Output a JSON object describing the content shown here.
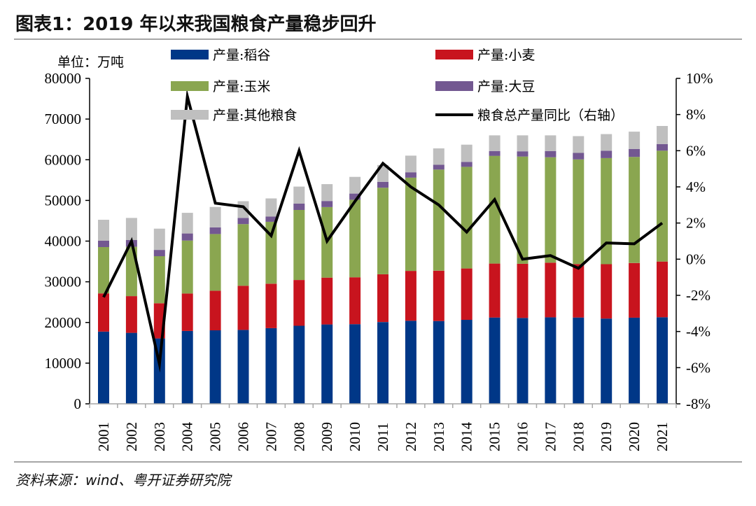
{
  "title": "图表1：2019 年以来我国粮食产量稳步回升",
  "source": "资料来源：wind、粤开证券研究院",
  "chart_data": {
    "type": "bar",
    "stacked": true,
    "title": "图表1：2019 年以来我国粮食产量稳步回升",
    "unit_label": "单位：万吨",
    "xlabel": "",
    "ylabel": "",
    "categories": [
      "2001",
      "2002",
      "2003",
      "2004",
      "2005",
      "2006",
      "2007",
      "2008",
      "2009",
      "2010",
      "2011",
      "2012",
      "2013",
      "2014",
      "2015",
      "2016",
      "2017",
      "2018",
      "2019",
      "2020",
      "2021"
    ],
    "ylim": [
      0,
      80000
    ],
    "yticks": [
      0,
      10000,
      20000,
      30000,
      40000,
      50000,
      60000,
      70000,
      80000
    ],
    "ytick_labels": [
      "0",
      "10000",
      "20000",
      "30000",
      "40000",
      "50000",
      "60000",
      "70000",
      "80000"
    ],
    "y2lim": [
      -8,
      10
    ],
    "y2ticks": [
      -8,
      -6,
      -4,
      -2,
      0,
      2,
      4,
      6,
      8,
      10
    ],
    "y2tick_labels": [
      "-8%",
      "-6%",
      "-4%",
      "-2%",
      "0%",
      "2%",
      "4%",
      "6%",
      "8%",
      "10%"
    ],
    "grid": false,
    "legend_position": "top",
    "series": [
      {
        "name": "产量:稻谷",
        "kind": "bar",
        "color": "#003787",
        "values": [
          17760,
          17450,
          16070,
          17910,
          18060,
          18170,
          18600,
          19190,
          19510,
          19580,
          20100,
          20420,
          20360,
          20650,
          21210,
          21110,
          21270,
          21210,
          20960,
          21190,
          21280
        ]
      },
      {
        "name": "产量:小麦",
        "kind": "bar",
        "color": "#c8141e",
        "values": [
          9390,
          9030,
          8650,
          9200,
          9740,
          10850,
          10930,
          11250,
          11510,
          11520,
          11740,
          12250,
          12370,
          12620,
          13260,
          13320,
          13430,
          13140,
          13360,
          13430,
          13690
        ]
      },
      {
        "name": "产量:玉米",
        "kind": "bar",
        "color": "#8aa650",
        "values": [
          11400,
          12130,
          11580,
          13030,
          13940,
          15160,
          15230,
          17210,
          17330,
          19080,
          21280,
          22950,
          24850,
          24980,
          26500,
          26360,
          25910,
          25720,
          26080,
          26070,
          27260
        ]
      },
      {
        "name": "产量:大豆",
        "kind": "bar",
        "color": "#735891",
        "values": [
          1540,
          1650,
          1540,
          1740,
          1630,
          1510,
          1270,
          1550,
          1500,
          1510,
          1450,
          1300,
          1200,
          1220,
          1180,
          1290,
          1530,
          1600,
          1810,
          1960,
          1640
        ]
      },
      {
        "name": "产量:其他粮食",
        "kind": "bar",
        "color": "#bfbfbf",
        "values": [
          5160,
          5440,
          5230,
          5070,
          5030,
          4110,
          4470,
          4200,
          4150,
          4110,
          4130,
          4080,
          4020,
          4230,
          3850,
          3920,
          3860,
          4130,
          4090,
          4250,
          4430
        ]
      },
      {
        "name": "粮食总产量同比（右轴）",
        "kind": "line",
        "axis": "right",
        "color": "#000000",
        "unit": "%",
        "values": [
          -2.1,
          1.0,
          -5.8,
          9.0,
          3.1,
          2.9,
          1.3,
          6.0,
          1.0,
          3.2,
          5.3,
          4.0,
          3.0,
          1.5,
          3.3,
          0.0,
          0.2,
          -0.5,
          0.9,
          0.85,
          2.0
        ]
      }
    ]
  }
}
